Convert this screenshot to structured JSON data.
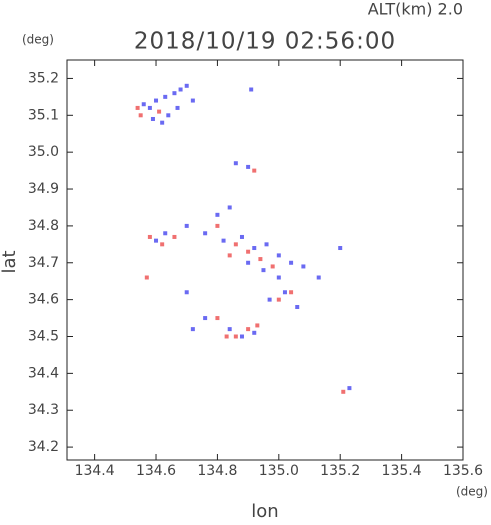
{
  "chart_data": {
    "type": "scatter",
    "title": "2018/10/19 02:56:00",
    "subtitle": "ALT(km) 2.0",
    "y_unit": "(deg)",
    "x_unit": "(deg)",
    "y_label": "lat",
    "x_label": "lon",
    "xlim": [
      134.31,
      135.6
    ],
    "ylim": [
      34.165,
      35.25
    ],
    "xticks": [
      134.4,
      134.6,
      134.8,
      {
        "value": 135,
        "label": "135.0"
      },
      135.2,
      135.4,
      135.6
    ],
    "yticks": [
      34.2,
      34.3,
      34.4,
      34.5,
      34.6,
      34.7,
      34.8,
      34.9,
      {
        "value": 35,
        "label": "35.0"
      },
      35.1,
      35.2
    ],
    "series": [
      {
        "color": "#6a6af2",
        "x": [
          134.56,
          134.6,
          134.63,
          134.66,
          134.68,
          134.7,
          134.64,
          134.62,
          134.58,
          134.67,
          134.72,
          134.59,
          134.91,
          134.86,
          134.9,
          134.6,
          134.63,
          134.7,
          134.76,
          134.8,
          134.84,
          134.82,
          134.88,
          134.92,
          134.96,
          135.0,
          135.04,
          135.08,
          134.9,
          134.95,
          135.0,
          135.02,
          134.97,
          135.06,
          135.13,
          135.2,
          134.7,
          134.84,
          134.88,
          134.92,
          134.76,
          134.72,
          135.23
        ],
        "values": [
          35.13,
          35.14,
          35.15,
          35.16,
          35.17,
          35.18,
          35.1,
          35.08,
          35.12,
          35.12,
          35.14,
          35.09,
          35.17,
          34.97,
          34.96,
          34.76,
          34.78,
          34.8,
          34.78,
          34.83,
          34.85,
          34.76,
          34.77,
          34.74,
          34.75,
          34.72,
          34.7,
          34.69,
          34.7,
          34.68,
          34.66,
          34.62,
          34.6,
          34.58,
          34.66,
          34.74,
          34.62,
          34.52,
          34.5,
          34.51,
          34.55,
          34.52,
          34.36
        ]
      },
      {
        "color": "#f07070",
        "x": [
          134.54,
          134.55,
          134.61,
          134.92,
          134.58,
          134.62,
          134.66,
          134.8,
          134.86,
          134.84,
          134.9,
          134.98,
          135.0,
          134.94,
          134.57,
          134.86,
          134.9,
          134.93,
          134.8,
          134.83,
          135.21,
          135.04
        ],
        "values": [
          35.12,
          35.1,
          35.11,
          34.95,
          34.77,
          34.75,
          34.77,
          34.8,
          34.75,
          34.72,
          34.73,
          34.69,
          34.6,
          34.71,
          34.66,
          34.5,
          34.52,
          34.53,
          34.55,
          34.5,
          34.35,
          34.62
        ]
      }
    ]
  }
}
